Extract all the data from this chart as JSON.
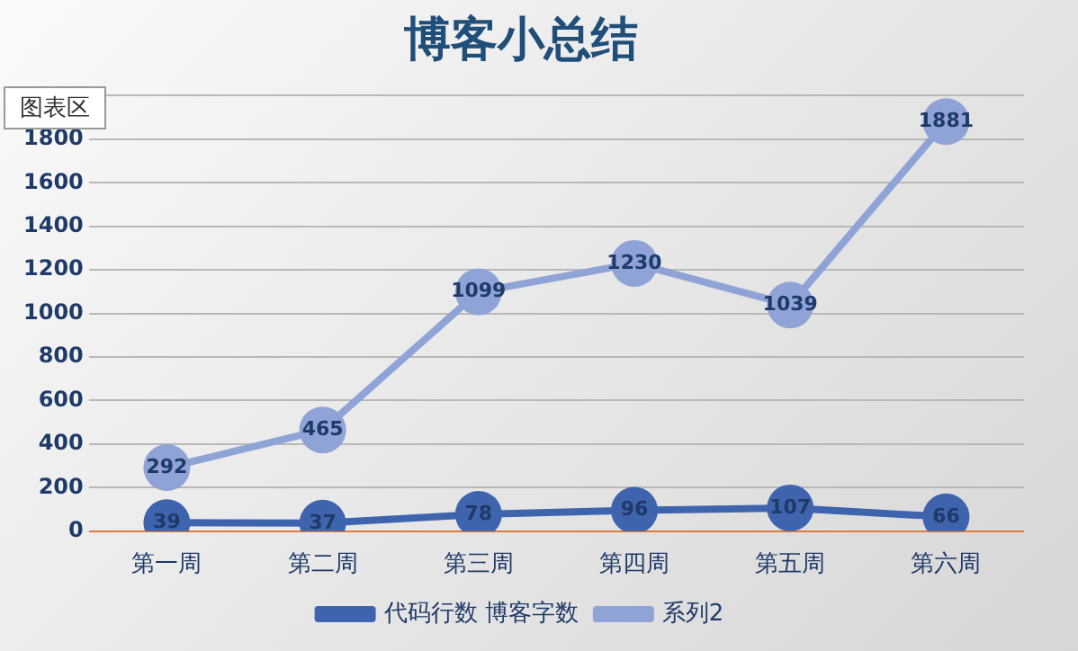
{
  "chart_data": {
    "type": "line",
    "title": "博客小总结",
    "categories": [
      "第一周",
      "第二周",
      "第三周",
      "第四周",
      "第五周",
      "第六周"
    ],
    "series": [
      {
        "name": "代码行数 博客字数",
        "color": "#3e64ae",
        "values": [
          39,
          37,
          78,
          96,
          107,
          66
        ]
      },
      {
        "name": "系列2",
        "color": "#8fa3d6",
        "values": [
          292,
          465,
          1099,
          1230,
          1039,
          1881
        ]
      }
    ],
    "ylim": [
      0,
      2000
    ],
    "yticks": [
      0,
      200,
      400,
      600,
      800,
      1000,
      1200,
      1400,
      1600,
      1800,
      {
        "value": 2000,
        "label": null
      }
    ],
    "grid": "y",
    "legend": "bottom",
    "marker": "circle",
    "line_style": "solid",
    "data_labels": true,
    "annotations": [
      "图表区"
    ]
  }
}
